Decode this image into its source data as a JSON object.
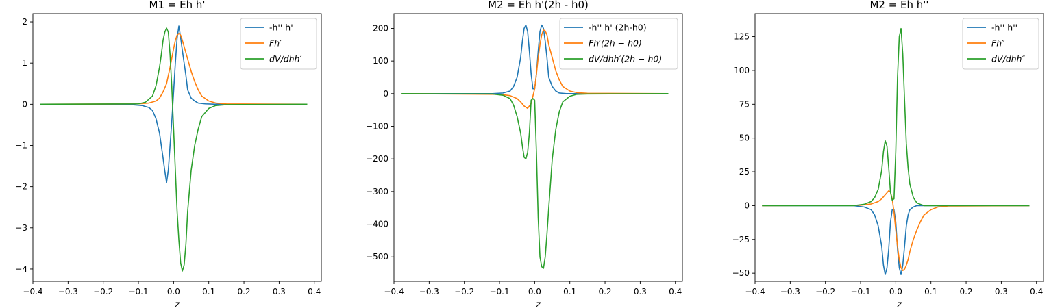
{
  "figure": {
    "background": "#ffffff",
    "colors": {
      "blue": "#1f77b4",
      "orange": "#ff7f0e",
      "green": "#2ca02c"
    }
  },
  "chart_data": [
    {
      "type": "line",
      "title": "M1 = Eh h'",
      "xlabel": "z",
      "ylabel": "",
      "xlim": [
        -0.4,
        0.42
      ],
      "ylim": [
        -4.3,
        2.2
      ],
      "xticks": [
        -0.4,
        -0.3,
        -0.2,
        -0.1,
        0.0,
        0.1,
        0.2,
        0.3,
        0.4
      ],
      "xtick_labels": [
        "−0.4",
        "−0.3",
        "−0.2",
        "−0.1",
        "0.0",
        "0.1",
        "0.2",
        "0.3",
        "0.4"
      ],
      "yticks": [
        2,
        1,
        0,
        -1,
        -2,
        -3,
        -4
      ],
      "ytick_labels": [
        "2",
        "1",
        "0",
        "−1",
        "−2",
        "−3",
        "−4"
      ],
      "legend": "top-right",
      "grid": false,
      "series": [
        {
          "name": "-h'' h'",
          "italic": false,
          "color": "#1f77b4",
          "x": [
            -0.38,
            -0.2,
            -0.12,
            -0.09,
            -0.07,
            -0.06,
            -0.05,
            -0.04,
            -0.035,
            -0.03,
            -0.025,
            -0.02,
            -0.015,
            -0.01,
            -0.005,
            0.0,
            0.005,
            0.01,
            0.015,
            0.02,
            0.025,
            0.03,
            0.035,
            0.04,
            0.05,
            0.06,
            0.07,
            0.09,
            0.12,
            0.2,
            0.38
          ],
          "y": [
            0,
            0,
            -0.01,
            -0.03,
            -0.08,
            -0.15,
            -0.35,
            -0.7,
            -1.0,
            -1.3,
            -1.62,
            -1.9,
            -1.6,
            -1.0,
            -0.4,
            0.3,
            1.0,
            1.6,
            1.9,
            1.62,
            1.3,
            1.0,
            0.7,
            0.35,
            0.15,
            0.08,
            0.03,
            0.01,
            0,
            0,
            0
          ]
        },
        {
          "name": "Fh′",
          "italic": true,
          "color": "#ff7f0e",
          "x": [
            -0.38,
            -0.1,
            -0.07,
            -0.05,
            -0.04,
            -0.03,
            -0.02,
            -0.01,
            0.0,
            0.005,
            0.01,
            0.015,
            0.02,
            0.025,
            0.03,
            0.04,
            0.05,
            0.06,
            0.07,
            0.08,
            0.1,
            0.12,
            0.15,
            0.38
          ],
          "y": [
            0,
            0.01,
            0.03,
            0.08,
            0.15,
            0.3,
            0.5,
            0.9,
            1.35,
            1.55,
            1.68,
            1.72,
            1.68,
            1.55,
            1.4,
            1.1,
            0.8,
            0.55,
            0.35,
            0.2,
            0.08,
            0.03,
            0.01,
            0
          ]
        },
        {
          "name": "dV/dhh′",
          "italic": true,
          "color": "#2ca02c",
          "x": [
            -0.38,
            -0.1,
            -0.08,
            -0.06,
            -0.05,
            -0.04,
            -0.035,
            -0.03,
            -0.025,
            -0.02,
            -0.015,
            -0.01,
            -0.005,
            0.0,
            0.005,
            0.01,
            0.015,
            0.02,
            0.025,
            0.03,
            0.035,
            0.04,
            0.05,
            0.06,
            0.07,
            0.08,
            0.1,
            0.12,
            0.15,
            0.38
          ],
          "y": [
            0,
            0.01,
            0.05,
            0.2,
            0.45,
            0.9,
            1.2,
            1.55,
            1.75,
            1.85,
            1.75,
            1.2,
            0.4,
            -0.6,
            -1.6,
            -2.6,
            -3.3,
            -3.85,
            -4.05,
            -3.9,
            -3.4,
            -2.6,
            -1.6,
            -1.0,
            -0.6,
            -0.3,
            -0.1,
            -0.03,
            -0.01,
            0
          ]
        }
      ]
    },
    {
      "type": "line",
      "title": "M2 = Eh h'(2h - h0)",
      "xlabel": "z",
      "ylabel": "",
      "xlim": [
        -0.4,
        0.42
      ],
      "ylim": [
        -575,
        245
      ],
      "xticks": [
        -0.4,
        -0.3,
        -0.2,
        -0.1,
        0.0,
        0.1,
        0.2,
        0.3,
        0.4
      ],
      "xtick_labels": [
        "−0.4",
        "−0.3",
        "−0.2",
        "−0.1",
        "0.0",
        "0.1",
        "0.2",
        "0.3",
        "0.4"
      ],
      "yticks": [
        200,
        100,
        0,
        -100,
        -200,
        -300,
        -400,
        -500
      ],
      "ytick_labels": [
        "200",
        "100",
        "0",
        "−100",
        "−200",
        "−300",
        "−400",
        "−500"
      ],
      "legend": "top-right",
      "grid": false,
      "series": [
        {
          "name": "-h'' h' (2h-h0)",
          "italic": false,
          "color": "#1f77b4",
          "x": [
            -0.38,
            -0.12,
            -0.09,
            -0.07,
            -0.06,
            -0.05,
            -0.04,
            -0.035,
            -0.03,
            -0.025,
            -0.02,
            -0.015,
            -0.01,
            -0.005,
            0.0,
            0.005,
            0.01,
            0.015,
            0.02,
            0.025,
            0.03,
            0.035,
            0.04,
            0.05,
            0.06,
            0.07,
            0.09,
            0.12,
            0.38
          ],
          "y": [
            0,
            0,
            2,
            8,
            22,
            50,
            110,
            160,
            200,
            210,
            190,
            130,
            60,
            15,
            15,
            60,
            130,
            190,
            210,
            200,
            160,
            110,
            50,
            22,
            8,
            2,
            0,
            0,
            0
          ]
        },
        {
          "name": "Fh′(2h − h0)",
          "italic": true,
          "color": "#ff7f0e",
          "x": [
            -0.38,
            -0.1,
            -0.07,
            -0.05,
            -0.04,
            -0.03,
            -0.02,
            -0.01,
            0.0,
            0.005,
            0.01,
            0.015,
            0.02,
            0.025,
            0.03,
            0.035,
            0.04,
            0.05,
            0.06,
            0.07,
            0.08,
            0.1,
            0.12,
            0.15,
            0.38
          ],
          "y": [
            0,
            -2,
            -6,
            -15,
            -25,
            -38,
            -45,
            -30,
            15,
            60,
            110,
            150,
            180,
            195,
            192,
            180,
            150,
            110,
            70,
            42,
            22,
            8,
            3,
            1,
            0
          ]
        },
        {
          "name": "dV/dhh′(2h − h0)",
          "italic": true,
          "color": "#2ca02c",
          "x": [
            -0.38,
            -0.12,
            -0.09,
            -0.07,
            -0.06,
            -0.05,
            -0.04,
            -0.035,
            -0.03,
            -0.025,
            -0.02,
            -0.015,
            -0.01,
            -0.005,
            0.0,
            0.005,
            0.01,
            0.015,
            0.02,
            0.025,
            0.03,
            0.035,
            0.04,
            0.05,
            0.06,
            0.07,
            0.08,
            0.1,
            0.12,
            0.15,
            0.38
          ],
          "y": [
            0,
            -1,
            -5,
            -15,
            -35,
            -70,
            -120,
            -160,
            -195,
            -200,
            -180,
            -120,
            -20,
            -15,
            -20,
            -180,
            -380,
            -500,
            -530,
            -535,
            -500,
            -430,
            -350,
            -200,
            -110,
            -55,
            -25,
            -8,
            -2,
            -1,
            0
          ]
        }
      ]
    },
    {
      "type": "line",
      "title": "M2 = Eh h''",
      "xlabel": "z",
      "ylabel": "",
      "xlim": [
        -0.4,
        0.42
      ],
      "ylim": [
        -56,
        142
      ],
      "xticks": [
        -0.4,
        -0.3,
        -0.2,
        -0.1,
        0.0,
        0.1,
        0.2,
        0.3,
        0.4
      ],
      "xtick_labels": [
        "−0.4",
        "−0.3",
        "−0.2",
        "−0.1",
        "0.0",
        "0.1",
        "0.2",
        "0.3",
        "0.4"
      ],
      "yticks": [
        125,
        100,
        75,
        50,
        25,
        0,
        -25,
        -50
      ],
      "ytick_labels": [
        "125",
        "100",
        "75",
        "50",
        "25",
        "0",
        "−25",
        "−50"
      ],
      "legend": "top-right",
      "grid": false,
      "series": [
        {
          "name": "-h'' h''",
          "italic": false,
          "color": "#1f77b4",
          "x": [
            -0.38,
            -0.12,
            -0.09,
            -0.07,
            -0.06,
            -0.05,
            -0.04,
            -0.035,
            -0.03,
            -0.025,
            -0.02,
            -0.015,
            -0.01,
            -0.005,
            0.0,
            0.005,
            0.01,
            0.015,
            0.02,
            0.025,
            0.03,
            0.035,
            0.04,
            0.05,
            0.06,
            0.07,
            0.09,
            0.12,
            0.38
          ],
          "y": [
            0,
            0,
            -1,
            -3,
            -7,
            -15,
            -30,
            -44,
            -51,
            -46,
            -32,
            -12,
            -3,
            -3,
            -12,
            -32,
            -46,
            -51,
            -44,
            -30,
            -15,
            -7,
            -3,
            -1,
            0,
            0,
            0,
            0,
            0
          ]
        },
        {
          "name": "Fh″",
          "italic": true,
          "color": "#ff7f0e",
          "x": [
            -0.38,
            -0.1,
            -0.07,
            -0.05,
            -0.04,
            -0.03,
            -0.02,
            -0.015,
            -0.01,
            -0.005,
            0.0,
            0.005,
            0.01,
            0.015,
            0.02,
            0.025,
            0.03,
            0.035,
            0.04,
            0.05,
            0.06,
            0.07,
            0.08,
            0.1,
            0.12,
            0.15,
            0.38
          ],
          "y": [
            0,
            0.3,
            1.2,
            3,
            5,
            8,
            11,
            10,
            5,
            -5,
            -18,
            -30,
            -40,
            -46,
            -48,
            -47,
            -44,
            -40,
            -34,
            -25,
            -18,
            -12,
            -7,
            -3,
            -1,
            -0.3,
            0
          ]
        },
        {
          "name": "dV/dhh″",
          "italic": true,
          "color": "#2ca02c",
          "x": [
            -0.38,
            -0.12,
            -0.09,
            -0.07,
            -0.06,
            -0.05,
            -0.04,
            -0.035,
            -0.03,
            -0.025,
            -0.02,
            -0.015,
            -0.01,
            -0.005,
            0.0,
            0.005,
            0.01,
            0.015,
            0.02,
            0.025,
            0.03,
            0.035,
            0.04,
            0.05,
            0.06,
            0.07,
            0.08,
            0.1,
            0.12,
            0.38
          ],
          "y": [
            0,
            0,
            1,
            3,
            6,
            12,
            26,
            40,
            48,
            44,
            28,
            10,
            4,
            5,
            40,
            95,
            125,
            131,
            112,
            78,
            46,
            28,
            16,
            6,
            2,
            1,
            0,
            0,
            0,
            0
          ]
        }
      ]
    }
  ]
}
